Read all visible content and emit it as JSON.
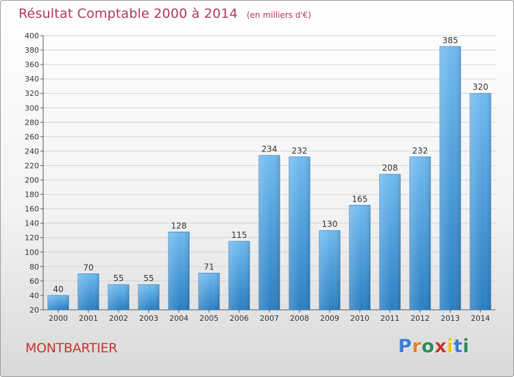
{
  "header": {
    "title": "Résultat Comptable 2000 à 2014",
    "subtitle": "(en milliers d'€)"
  },
  "commune": "MONTBARTIER",
  "logo": {
    "text": "Proxiti",
    "letter_colors": [
      "#3a7bd5",
      "#e67e22",
      "#2e8b57",
      "#c0392b",
      "#f1c40f",
      "#3a7bd5",
      "#2e8b57"
    ]
  },
  "colors": {
    "bar_top": "#6fbaf0",
    "bar_bottom": "#2a7fc2",
    "title": "#b0385a",
    "commune": "#c0392b"
  },
  "chart_data": {
    "type": "bar",
    "title": "Résultat Comptable 2000 à 2014",
    "xlabel": "",
    "ylabel": "",
    "ylim": [
      20,
      400
    ],
    "ytick_step": 20,
    "categories": [
      "2000",
      "2001",
      "2002",
      "2003",
      "2004",
      "2005",
      "2006",
      "2007",
      "2008",
      "2009",
      "2010",
      "2011",
      "2012",
      "2013",
      "2014"
    ],
    "values": [
      40,
      70,
      55,
      55,
      128,
      71,
      115,
      234,
      232,
      130,
      165,
      208,
      232,
      385,
      320
    ]
  }
}
